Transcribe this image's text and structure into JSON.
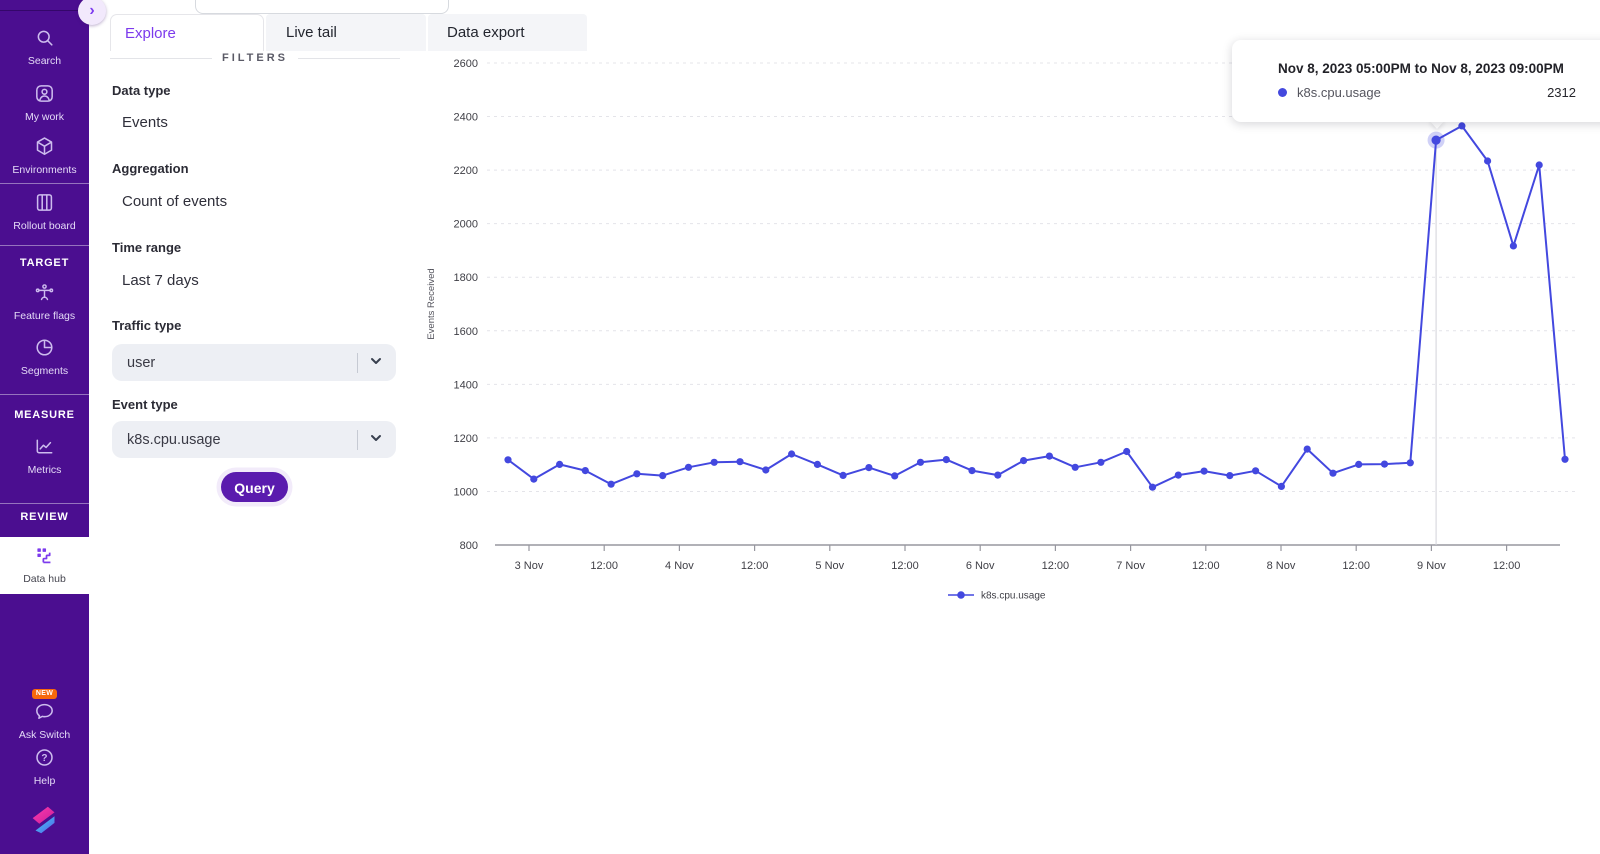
{
  "sidebar": {
    "headers": [
      "TARGET",
      "MEASURE",
      "REVIEW"
    ],
    "items": [
      {
        "icon": "search-icon",
        "label": "Search"
      },
      {
        "icon": "my-work-icon",
        "label": "My work"
      },
      {
        "icon": "environments-icon",
        "label": "Environments"
      },
      {
        "icon": "rollout-board-icon",
        "label": "Rollout board"
      },
      {
        "icon": "feature-flags-icon",
        "label": "Feature flags"
      },
      {
        "icon": "segments-icon",
        "label": "Segments"
      },
      {
        "icon": "metrics-icon",
        "label": "Metrics"
      },
      {
        "icon": "data-hub-icon",
        "label": "Data hub",
        "active": true
      }
    ],
    "footer_items": [
      {
        "icon": "ask-switch-icon",
        "label": "Ask Switch",
        "badge": "NEW"
      },
      {
        "icon": "help-icon",
        "label": "Help"
      }
    ],
    "colors": {
      "background": "#4B0E90",
      "active_accent": "#7C3AED",
      "badge": "#F7670B"
    }
  },
  "tabs": [
    {
      "label": "Explore",
      "active": true
    },
    {
      "label": "Live tail",
      "active": false
    },
    {
      "label": "Data export",
      "active": false
    }
  ],
  "filters": {
    "heading": "FILTERS",
    "fields": [
      {
        "label": "Data type",
        "value": "Events",
        "type": "text"
      },
      {
        "label": "Aggregation",
        "value": "Count of events",
        "type": "text"
      },
      {
        "label": "Time range",
        "value": "Last 7 days",
        "type": "text"
      },
      {
        "label": "Traffic type",
        "value": "user",
        "type": "select"
      },
      {
        "label": "Event type",
        "value": "k8s.cpu.usage",
        "type": "select"
      }
    ],
    "query_label": "Query"
  },
  "tooltip": {
    "title": "Nov 8, 2023 05:00PM to Nov 8, 2023 09:00PM",
    "series": "k8s.cpu.usage",
    "value": "2312",
    "dot_color": "#4449DE"
  },
  "chart_data": {
    "type": "line",
    "ylabel": "Events Received",
    "ylim": [
      800,
      2600
    ],
    "y_ticks": [
      800,
      1000,
      1200,
      1400,
      1600,
      1800,
      2000,
      2200,
      2400,
      2600
    ],
    "x_tick_labels": [
      "3 Nov",
      "12:00",
      "4 Nov",
      "12:00",
      "5 Nov",
      "12:00",
      "6 Nov",
      "12:00",
      "7 Nov",
      "12:00",
      "8 Nov",
      "12:00",
      "9 Nov",
      "12:00"
    ],
    "grid": "horizontal-dashed",
    "series": [
      {
        "name": "k8s.cpu.usage",
        "color": "#4348DF",
        "values": [
          1118,
          1046,
          1101,
          1078,
          1027,
          1066,
          1059,
          1090,
          1109,
          1111,
          1080,
          1140,
          1101,
          1060,
          1089,
          1058,
          1109,
          1119,
          1078,
          1061,
          1115,
          1132,
          1090,
          1109,
          1149,
          1016,
          1061,
          1076,
          1059,
          1077,
          1019,
          1158,
          1068,
          1101,
          1102,
          1107,
          2312,
          2365,
          2234,
          1917,
          2219,
          1120
        ]
      }
    ],
    "highlight": {
      "index": 36,
      "value": 2312,
      "tooltip_range": "Nov 8, 2023 05:00PM to Nov 8, 2023 09:00PM"
    },
    "legend": {
      "label": "k8s.cpu.usage",
      "position": "bottom"
    }
  }
}
